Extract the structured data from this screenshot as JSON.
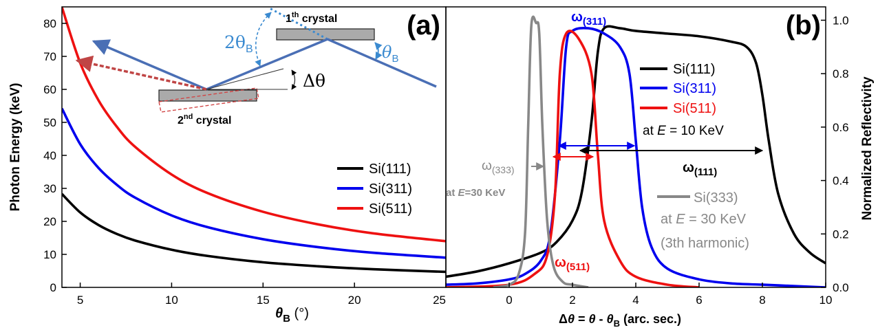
{
  "chart_data": [
    {
      "panel_label": "(a)",
      "type": "line",
      "xlabel_main": "θ",
      "xlabel_sub": "B",
      "xlabel_unit": " (°)",
      "ylabel": "Photon Energy (keV)",
      "xlim": [
        4,
        25
      ],
      "ylim": [
        0,
        85
      ],
      "xticks": [
        5,
        10,
        15,
        20,
        25
      ],
      "yticks": [
        0,
        10,
        20,
        30,
        40,
        50,
        60,
        70,
        80
      ],
      "series": [
        {
          "name": "Si(111)",
          "color": "#000000",
          "x": [
            4,
            5,
            6,
            7,
            8,
            10,
            12,
            15,
            18,
            21,
            25
          ],
          "y": [
            28.3,
            22.7,
            18.9,
            16.2,
            14.2,
            11.4,
            9.5,
            7.6,
            6.4,
            5.5,
            4.7
          ]
        },
        {
          "name": "Si(311)",
          "color": "#0000ee",
          "x": [
            4,
            5,
            6,
            7,
            8,
            10,
            12,
            15,
            18,
            21,
            25
          ],
          "y": [
            54.2,
            43.4,
            36.2,
            31.1,
            27.2,
            21.8,
            18.2,
            14.6,
            12.2,
            10.5,
            9.0
          ]
        },
        {
          "name": "Si(511)",
          "color": "#ee1111",
          "x": [
            4,
            5,
            6,
            7,
            8,
            10,
            12,
            15,
            18,
            21,
            25
          ],
          "y": [
            84.9,
            68.0,
            56.7,
            48.7,
            42.6,
            34.2,
            28.5,
            22.9,
            19.1,
            16.4,
            14.0
          ]
        }
      ],
      "legend": {
        "position": "right",
        "labels": [
          "Si(111)",
          "Si(311)",
          "Si(511)"
        ]
      },
      "inset": {
        "first_crystal_label": "1",
        "first_crystal_sup": "th",
        "first_crystal_rest": " crystal",
        "second_crystal_label": "2",
        "second_crystal_sup": "nd",
        "second_crystal_rest": " crystal",
        "two_theta_label": "2θ",
        "theta_label": "θ",
        "theta_sub": "B",
        "delta_theta_label": "Δθ"
      }
    },
    {
      "panel_label": "(b)",
      "type": "line",
      "xlabel": "Δθ = θ - θB (arc. sec.)",
      "xlabel_parts": {
        "delta": "Δ",
        "theta1": "θ",
        "eq": " = ",
        "theta2": "θ",
        "minus": " - ",
        "theta3": "θ",
        "sub": "B",
        "unit": " (arc. sec.)"
      },
      "ylabel": "Normalized Reflectivity",
      "xlim": [
        -2,
        10
      ],
      "ylim": [
        0,
        1.05
      ],
      "xticks": [
        0,
        2,
        4,
        6,
        8,
        10
      ],
      "xtick_labels": [
        "0",
        "2",
        "4",
        "6",
        "8",
        "10"
      ],
      "yticks": [
        0.0,
        0.2,
        0.4,
        0.6,
        0.8,
        1.0
      ],
      "ytick_labels": [
        "0.0",
        "0.2",
        "0.4",
        "0.6",
        "0.8",
        "1.0"
      ],
      "series": [
        {
          "name": "Si(111)",
          "color": "#000000",
          "x": [
            -2,
            -1,
            0,
            1,
            1.5,
            2,
            2.3,
            2.6,
            2.8,
            3.0,
            3.5,
            4,
            5,
            6,
            7,
            7.5,
            7.8,
            8,
            8.2,
            8.5,
            9,
            9.5,
            10
          ],
          "y": [
            0.04,
            0.06,
            0.09,
            0.13,
            0.17,
            0.25,
            0.36,
            0.62,
            0.88,
            0.97,
            0.97,
            0.96,
            0.95,
            0.94,
            0.92,
            0.9,
            0.84,
            0.72,
            0.55,
            0.35,
            0.2,
            0.13,
            0.09
          ]
        },
        {
          "name": "Si(311)",
          "color": "#0000ee",
          "x": [
            -2,
            -1,
            0,
            0.5,
            1,
            1.3,
            1.6,
            1.8,
            2.0,
            2.5,
            3,
            3.5,
            3.8,
            4.0,
            4.2,
            4.5,
            5,
            6,
            7,
            8,
            9,
            10
          ],
          "y": [
            0.01,
            0.015,
            0.03,
            0.05,
            0.1,
            0.2,
            0.55,
            0.9,
            0.96,
            0.97,
            0.95,
            0.9,
            0.8,
            0.55,
            0.3,
            0.15,
            0.07,
            0.03,
            0.015,
            0.01,
            0.005,
            0.0
          ]
        },
        {
          "name": "Si(511)",
          "color": "#ee1111",
          "x": [
            -2,
            0,
            0.8,
            1.2,
            1.45,
            1.6,
            1.8,
            2.2,
            2.6,
            2.8,
            3.0,
            3.5,
            4,
            5,
            6
          ],
          "y": [
            0.0,
            0.01,
            0.05,
            0.12,
            0.35,
            0.8,
            0.95,
            0.93,
            0.8,
            0.5,
            0.25,
            0.1,
            0.04,
            0.01,
            0.0
          ]
        },
        {
          "name": "Si(333)",
          "color": "#888888",
          "x": [
            -0.5,
            0,
            0.3,
            0.5,
            0.6,
            0.7,
            0.85,
            0.95,
            1.05,
            1.2,
            1.4,
            1.7,
            2.0,
            2.5
          ],
          "y": [
            0.0,
            0.01,
            0.05,
            0.2,
            0.6,
            0.98,
            0.99,
            0.95,
            0.6,
            0.25,
            0.08,
            0.02,
            0.01,
            0.0
          ]
        }
      ],
      "legend": {
        "position": "right",
        "labels": [
          "Si(111)",
          "Si(311)",
          "Si(511)"
        ],
        "note": "at E = 10 KeV",
        "note_prefix": "at ",
        "note_var": "E",
        "note_rest": " = 10 KeV"
      },
      "annotations": {
        "omega_311": "ω(311)",
        "omega_111": "ω(111)",
        "omega_511": "ω(511)",
        "omega_333": "ω(333)",
        "omega_symbol": "ω",
        "sub_311": "(311)",
        "sub_111": "(111)",
        "sub_511": "(511)",
        "sub_333": "(333)",
        "at30_prefix": "at ",
        "at30_var": "E",
        "at30_rest": "=30 KeV",
        "si333_label": "Si(333)",
        "si333_note1_prefix": "at ",
        "si333_note1_var": "E",
        "si333_note1_rest": " = 30 KeV",
        "si333_note2": "(3th harmonic)"
      }
    }
  ]
}
